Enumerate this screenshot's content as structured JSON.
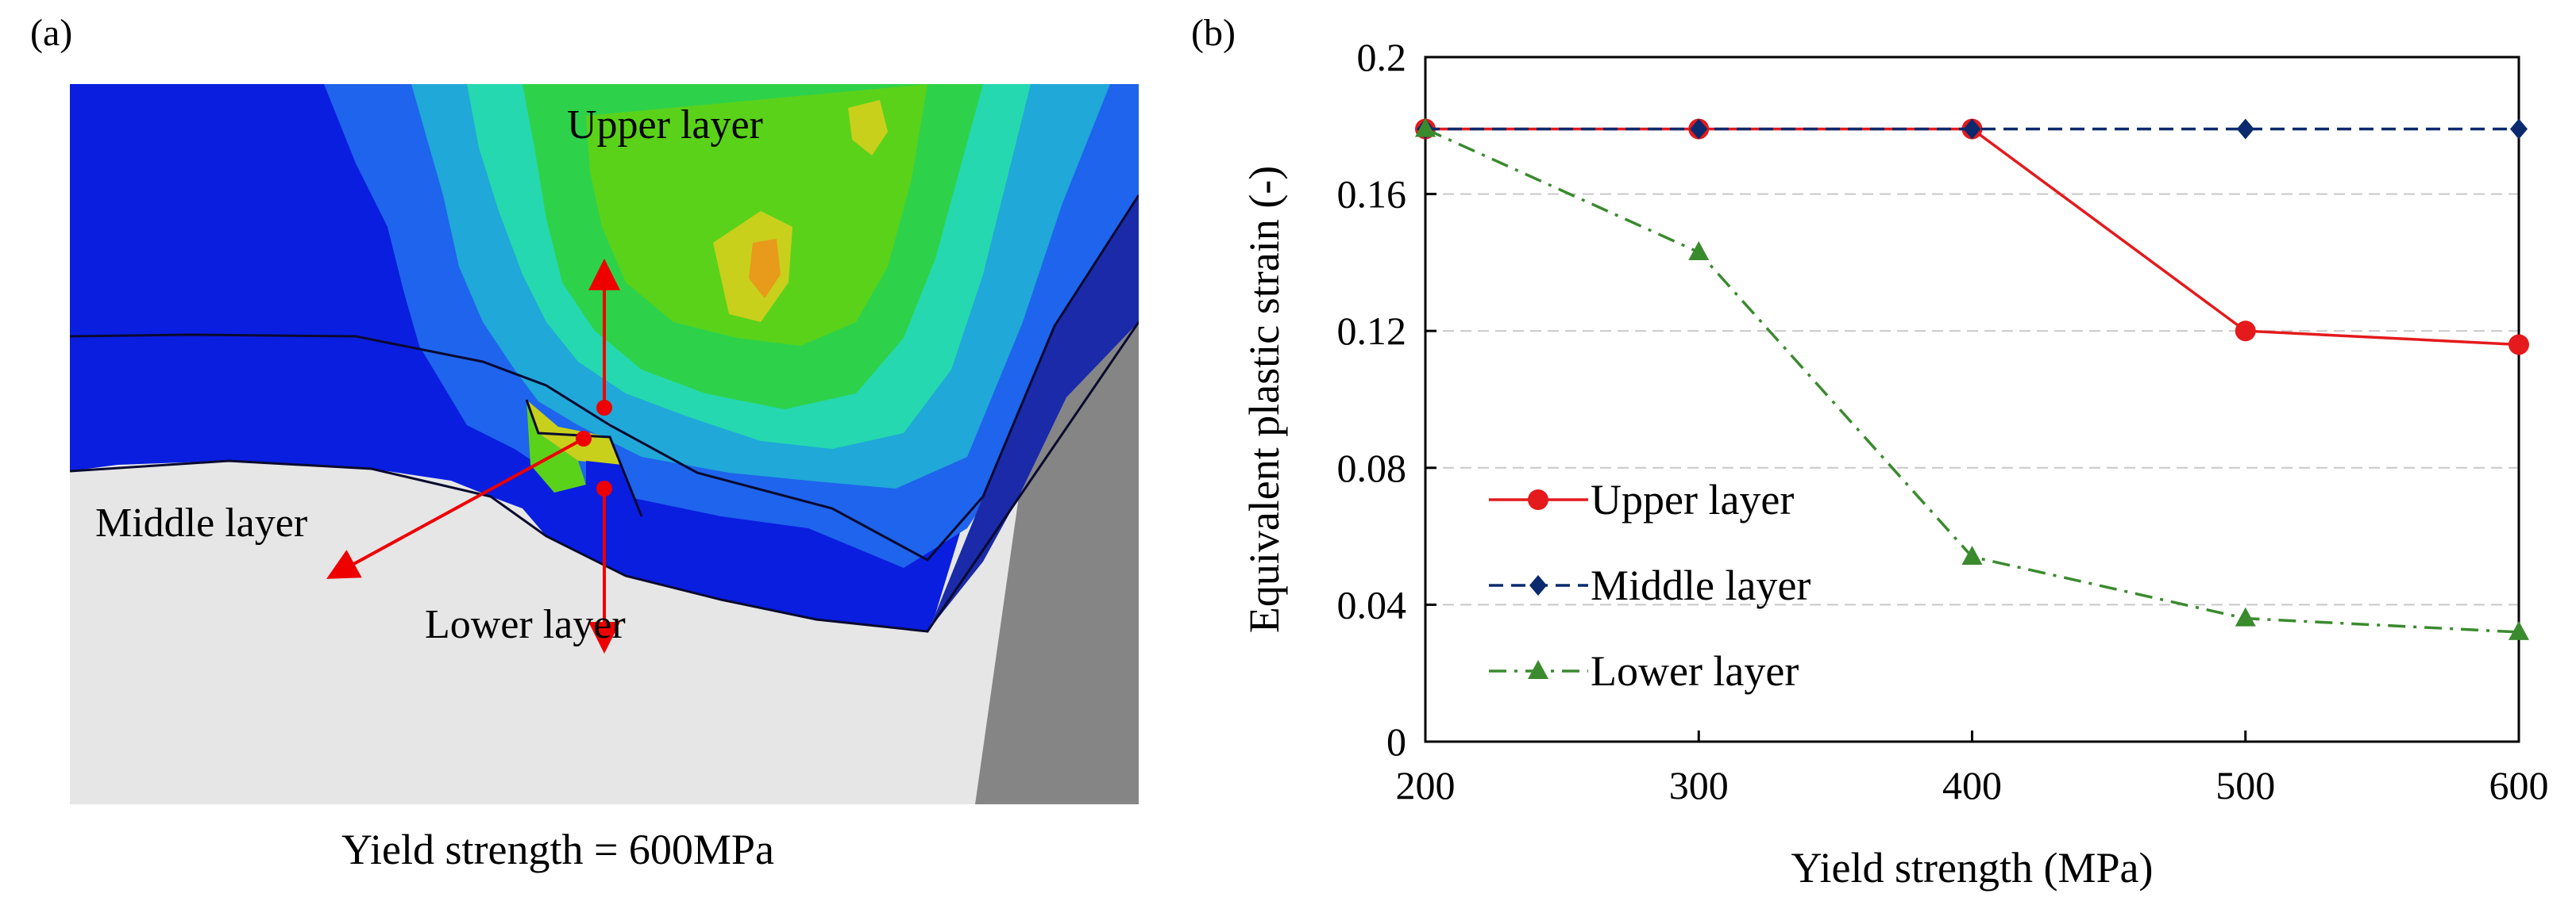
{
  "panel_a": {
    "label": "(a)",
    "callouts": {
      "upper": "Upper layer",
      "middle": "Middle layer",
      "lower": "Lower layer"
    },
    "caption": "Yield strength = 600MPa",
    "contour_colors": [
      "#0a1ee0",
      "#1f64ec",
      "#20a8d8",
      "#25d8b0",
      "#2ed24a",
      "#5ad21a",
      "#c8d01c",
      "#e89a1a"
    ]
  },
  "panel_b": {
    "label": "(b)"
  },
  "chart_data": {
    "type": "line",
    "title": "",
    "xlabel": "Yield strength (MPa)",
    "ylabel": "Equivalent plastic strain (-)",
    "x": [
      200,
      300,
      400,
      500,
      600
    ],
    "xlim": [
      200,
      600
    ],
    "ylim": [
      0,
      0.2
    ],
    "xticks": [
      200,
      300,
      400,
      500,
      600
    ],
    "yticks": [
      0,
      0.04,
      0.08,
      0.12,
      0.16,
      0.2
    ],
    "ytick_labels": [
      "0",
      "0.04",
      "0.08",
      "0.12",
      "0.16",
      "0.2"
    ],
    "grid": "horizontal dashed",
    "legend_position": "lower-left",
    "series": [
      {
        "name": "Upper layer",
        "values": [
          0.179,
          0.179,
          0.179,
          0.12,
          0.116
        ],
        "color": "#e41a1c",
        "marker": "circle",
        "dash": "solid"
      },
      {
        "name": "Middle layer",
        "values": [
          0.179,
          0.179,
          0.179,
          0.179,
          0.179
        ],
        "color": "#0b2a6e",
        "marker": "diamond",
        "dash": "dashed"
      },
      {
        "name": "Lower layer",
        "values": [
          0.179,
          0.143,
          0.054,
          0.036,
          0.032
        ],
        "color": "#3a8a2e",
        "marker": "triangle",
        "dash": "dashdot"
      }
    ]
  }
}
